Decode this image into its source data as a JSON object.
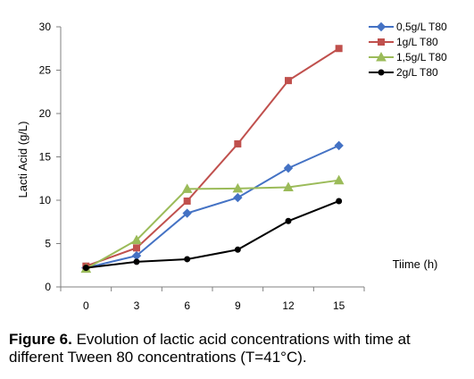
{
  "chart_data": {
    "type": "line",
    "x": [
      0,
      3,
      6,
      9,
      12,
      15
    ],
    "ylabel": "Lacti Acid (g/L)",
    "xlabel": "Tiime (h)",
    "ylim": [
      0,
      30
    ],
    "yticks": [
      0,
      5,
      10,
      15,
      20,
      25,
      30
    ],
    "grid": false,
    "legend_position": "top-right",
    "series": [
      {
        "name": "0,5g/L T80",
        "color": "#4472c4",
        "marker": "diamond",
        "values": [
          2.2,
          3.6,
          8.5,
          10.3,
          13.7,
          16.3
        ]
      },
      {
        "name": "1g/L T80",
        "color": "#c0504d",
        "marker": "square",
        "values": [
          2.4,
          4.5,
          9.9,
          16.5,
          23.8,
          27.5
        ]
      },
      {
        "name": "1,5g/L T80",
        "color": "#9bbb59",
        "marker": "triangle",
        "values": [
          2.1,
          5.4,
          11.3,
          11.35,
          11.5,
          12.3
        ]
      },
      {
        "name": "2g/L T80",
        "color": "#000000",
        "marker": "circle",
        "values": [
          2.2,
          2.9,
          3.2,
          4.3,
          7.6,
          9.9
        ]
      }
    ]
  },
  "caption": {
    "lead": "Figure 6.",
    "text": " Evolution of lactic acid concentrations with time at different Tween 80 concentrations (T=41°C)."
  }
}
